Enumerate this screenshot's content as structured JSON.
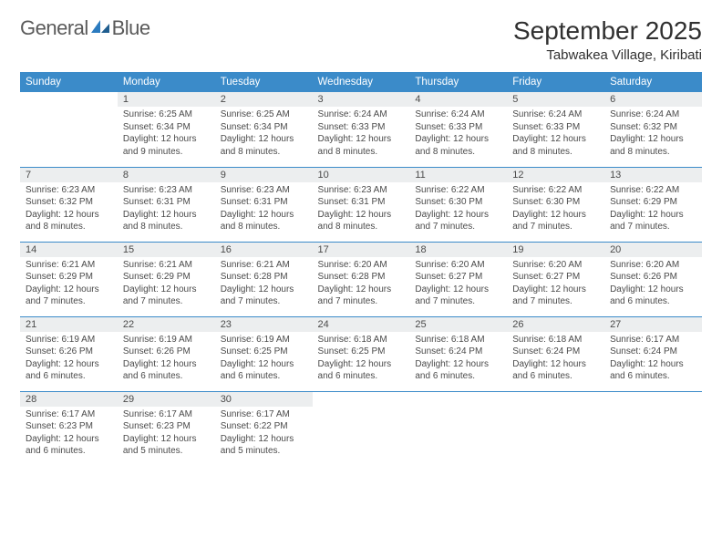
{
  "brand": {
    "part1": "General",
    "part2": "Blue",
    "gray": "#5a5a5a",
    "blue": "#2b7bbf"
  },
  "title": "September 2025",
  "location": "Tabwakea Village, Kiribati",
  "header_bg": "#3b8bc9",
  "daynum_bg": "#eceeef",
  "columns": [
    "Sunday",
    "Monday",
    "Tuesday",
    "Wednesday",
    "Thursday",
    "Friday",
    "Saturday"
  ],
  "weeks": [
    [
      {
        "n": "",
        "sr": "",
        "ss": "",
        "dl": ""
      },
      {
        "n": "1",
        "sr": "6:25 AM",
        "ss": "6:34 PM",
        "dl": "12 hours and 9 minutes."
      },
      {
        "n": "2",
        "sr": "6:25 AM",
        "ss": "6:34 PM",
        "dl": "12 hours and 8 minutes."
      },
      {
        "n": "3",
        "sr": "6:24 AM",
        "ss": "6:33 PM",
        "dl": "12 hours and 8 minutes."
      },
      {
        "n": "4",
        "sr": "6:24 AM",
        "ss": "6:33 PM",
        "dl": "12 hours and 8 minutes."
      },
      {
        "n": "5",
        "sr": "6:24 AM",
        "ss": "6:33 PM",
        "dl": "12 hours and 8 minutes."
      },
      {
        "n": "6",
        "sr": "6:24 AM",
        "ss": "6:32 PM",
        "dl": "12 hours and 8 minutes."
      }
    ],
    [
      {
        "n": "7",
        "sr": "6:23 AM",
        "ss": "6:32 PM",
        "dl": "12 hours and 8 minutes."
      },
      {
        "n": "8",
        "sr": "6:23 AM",
        "ss": "6:31 PM",
        "dl": "12 hours and 8 minutes."
      },
      {
        "n": "9",
        "sr": "6:23 AM",
        "ss": "6:31 PM",
        "dl": "12 hours and 8 minutes."
      },
      {
        "n": "10",
        "sr": "6:23 AM",
        "ss": "6:31 PM",
        "dl": "12 hours and 8 minutes."
      },
      {
        "n": "11",
        "sr": "6:22 AM",
        "ss": "6:30 PM",
        "dl": "12 hours and 7 minutes."
      },
      {
        "n": "12",
        "sr": "6:22 AM",
        "ss": "6:30 PM",
        "dl": "12 hours and 7 minutes."
      },
      {
        "n": "13",
        "sr": "6:22 AM",
        "ss": "6:29 PM",
        "dl": "12 hours and 7 minutes."
      }
    ],
    [
      {
        "n": "14",
        "sr": "6:21 AM",
        "ss": "6:29 PM",
        "dl": "12 hours and 7 minutes."
      },
      {
        "n": "15",
        "sr": "6:21 AM",
        "ss": "6:29 PM",
        "dl": "12 hours and 7 minutes."
      },
      {
        "n": "16",
        "sr": "6:21 AM",
        "ss": "6:28 PM",
        "dl": "12 hours and 7 minutes."
      },
      {
        "n": "17",
        "sr": "6:20 AM",
        "ss": "6:28 PM",
        "dl": "12 hours and 7 minutes."
      },
      {
        "n": "18",
        "sr": "6:20 AM",
        "ss": "6:27 PM",
        "dl": "12 hours and 7 minutes."
      },
      {
        "n": "19",
        "sr": "6:20 AM",
        "ss": "6:27 PM",
        "dl": "12 hours and 7 minutes."
      },
      {
        "n": "20",
        "sr": "6:20 AM",
        "ss": "6:26 PM",
        "dl": "12 hours and 6 minutes."
      }
    ],
    [
      {
        "n": "21",
        "sr": "6:19 AM",
        "ss": "6:26 PM",
        "dl": "12 hours and 6 minutes."
      },
      {
        "n": "22",
        "sr": "6:19 AM",
        "ss": "6:26 PM",
        "dl": "12 hours and 6 minutes."
      },
      {
        "n": "23",
        "sr": "6:19 AM",
        "ss": "6:25 PM",
        "dl": "12 hours and 6 minutes."
      },
      {
        "n": "24",
        "sr": "6:18 AM",
        "ss": "6:25 PM",
        "dl": "12 hours and 6 minutes."
      },
      {
        "n": "25",
        "sr": "6:18 AM",
        "ss": "6:24 PM",
        "dl": "12 hours and 6 minutes."
      },
      {
        "n": "26",
        "sr": "6:18 AM",
        "ss": "6:24 PM",
        "dl": "12 hours and 6 minutes."
      },
      {
        "n": "27",
        "sr": "6:17 AM",
        "ss": "6:24 PM",
        "dl": "12 hours and 6 minutes."
      }
    ],
    [
      {
        "n": "28",
        "sr": "6:17 AM",
        "ss": "6:23 PM",
        "dl": "12 hours and 6 minutes."
      },
      {
        "n": "29",
        "sr": "6:17 AM",
        "ss": "6:23 PM",
        "dl": "12 hours and 5 minutes."
      },
      {
        "n": "30",
        "sr": "6:17 AM",
        "ss": "6:22 PM",
        "dl": "12 hours and 5 minutes."
      },
      {
        "n": "",
        "sr": "",
        "ss": "",
        "dl": ""
      },
      {
        "n": "",
        "sr": "",
        "ss": "",
        "dl": ""
      },
      {
        "n": "",
        "sr": "",
        "ss": "",
        "dl": ""
      },
      {
        "n": "",
        "sr": "",
        "ss": "",
        "dl": ""
      }
    ]
  ],
  "labels": {
    "sunrise": "Sunrise: ",
    "sunset": "Sunset: ",
    "daylight": "Daylight: "
  }
}
